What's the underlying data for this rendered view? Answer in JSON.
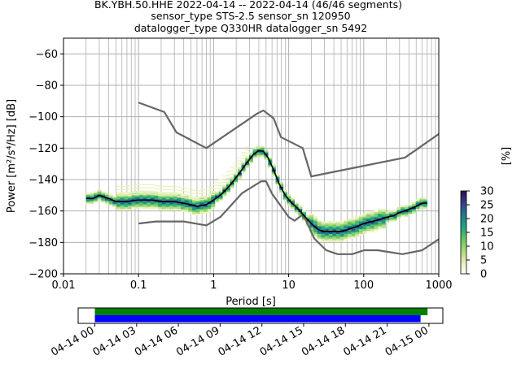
{
  "title_lines": [
    "BK.YBH.50.HHE   2022-04-14 -- 2022-04-14  (46/46 segments)",
    "sensor_type STS-2.5 sensor_sn 120950",
    "datalogger_type Q330HR datalogger_sn 5492"
  ],
  "colors": {
    "noise_models": "#666666",
    "mode_line": "#000000",
    "coverage_green": "#008000",
    "coverage_blue": "#0000ff",
    "grid": "#b0b0b0"
  },
  "chart_data": [
    {
      "type": "heatmap",
      "title": "",
      "xlabel": "Period [s]",
      "ylabel": "Power [m²/s⁴/Hz] [dB]",
      "xscale": "log",
      "xlim": [
        0.01,
        1000
      ],
      "ylim": [
        -200,
        -50
      ],
      "grid": true,
      "x_ticks": [
        0.01,
        0.1,
        1,
        10,
        100,
        1000
      ],
      "x_tick_labels": [
        "0.01",
        "0.1",
        "1",
        "10",
        "100",
        "1000"
      ],
      "y_ticks": [
        -200,
        -180,
        -160,
        -140,
        -120,
        -100,
        -80,
        -60
      ],
      "y_tick_labels": [
        "−200",
        "−180",
        "−160",
        "−140",
        "−120",
        "−100",
        "−80",
        "−60"
      ],
      "colorbar": {
        "label": "[%]",
        "range": [
          0,
          30
        ],
        "ticks": [
          0,
          5,
          10,
          15,
          20,
          25,
          30
        ],
        "tick_labels": [
          "0",
          "5",
          "10",
          "15",
          "20",
          "25",
          "30"
        ],
        "colormap": "pqlx"
      },
      "series": [
        {
          "role": "mode",
          "x": [
            0.02,
            0.025,
            0.03,
            0.04,
            0.05,
            0.07,
            0.1,
            0.15,
            0.2,
            0.3,
            0.4,
            0.5,
            0.6,
            0.8,
            1.0,
            1.3,
            1.7,
            2.2,
            2.8,
            3.4,
            4.0,
            4.6,
            5.3,
            6.2,
            7.5,
            9.0,
            11,
            13,
            16,
            20,
            25,
            30,
            40,
            50,
            60,
            80,
            100,
            120,
            150,
            200,
            250,
            300,
            400,
            500,
            600,
            700
          ],
          "y": [
            -152,
            -152,
            -150,
            -152,
            -154,
            -154,
            -153,
            -153,
            -154,
            -154,
            -155,
            -156,
            -157,
            -156,
            -153,
            -149,
            -143,
            -136,
            -129,
            -124,
            -121.5,
            -122,
            -126,
            -133,
            -143,
            -150,
            -155,
            -158,
            -163,
            -168,
            -172,
            -173,
            -173,
            -173,
            -172,
            -170,
            -168,
            -167,
            -166,
            -164,
            -163,
            -161,
            -159,
            -157,
            -155,
            -155
          ]
        },
        {
          "role": "high-noise-model",
          "x": [
            0.1,
            0.22,
            0.32,
            0.8,
            3.8,
            4.6,
            6.3,
            7.9,
            15.4,
            20,
            354.8,
            1000
          ],
          "y": [
            -91,
            -97,
            -110,
            -120,
            -98,
            -96,
            -101,
            -113,
            -120,
            -138,
            -126,
            -111
          ]
        },
        {
          "role": "low-noise-model",
          "x": [
            0.1,
            0.17,
            0.4,
            0.8,
            1.24,
            2.4,
            4.3,
            5.0,
            6.0,
            10.0,
            12.0,
            15.6,
            21.9,
            31.6,
            45,
            70,
            101,
            154,
            328,
            600,
            1000
          ],
          "y": [
            -168,
            -166.7,
            -166.7,
            -169.2,
            -163.7,
            -148.6,
            -141.1,
            -141.1,
            -149,
            -163.8,
            -166.2,
            -162.1,
            -177.5,
            -185,
            -187.5,
            -187.5,
            -185,
            -185,
            -187.5,
            -185,
            -178
          ]
        }
      ]
    },
    {
      "type": "bar",
      "title": "",
      "role": "data-coverage",
      "x_tick_labels": [
        "04-14 00",
        "04-14 03",
        "04-14 06",
        "04-14 09",
        "04-14 12",
        "04-14 15",
        "04-14 18",
        "04-14 21",
        "04-15 00"
      ],
      "xlim_hours": [
        -1.2,
        25
      ],
      "series": [
        {
          "name": "",
          "start_hour": 0,
          "end_hour": 23.9,
          "color": "#008000"
        },
        {
          "name": "",
          "start_hour": 0,
          "end_hour": 23.4,
          "color": "#0000ff"
        }
      ]
    }
  ]
}
